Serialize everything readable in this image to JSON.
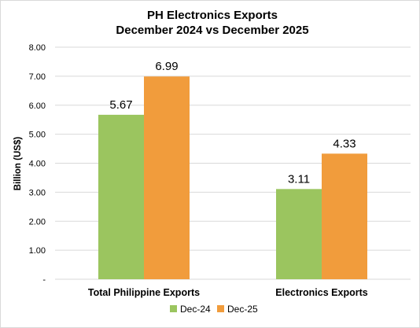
{
  "chart_data": {
    "type": "bar",
    "title": [
      "PH Electronics Exports",
      "December 2024 vs December 2025"
    ],
    "ylabel": "Billion (US$)",
    "xlabel": "",
    "categories": [
      "Total Philippine Exports",
      "Electronics Exports"
    ],
    "series": [
      {
        "name": "Dec-24",
        "values": [
          5.67,
          3.11
        ],
        "labels": [
          "5.67",
          "3.11"
        ],
        "color": "#9bc55f"
      },
      {
        "name": "Dec-25",
        "values": [
          6.99,
          4.33
        ],
        "labels": [
          "6.99",
          "4.33"
        ],
        "color": "#f19c3c"
      }
    ],
    "ylim": [
      0,
      8
    ],
    "yticks": [
      0,
      1,
      2,
      3,
      4,
      5,
      6,
      7,
      8
    ],
    "ytick_labels": [
      "-",
      "1.00",
      "2.00",
      "3.00",
      "4.00",
      "5.00",
      "6.00",
      "7.00",
      "8.00"
    ],
    "grid": true,
    "gridline_color": "#d9d9d9",
    "legend_position": "bottom"
  }
}
